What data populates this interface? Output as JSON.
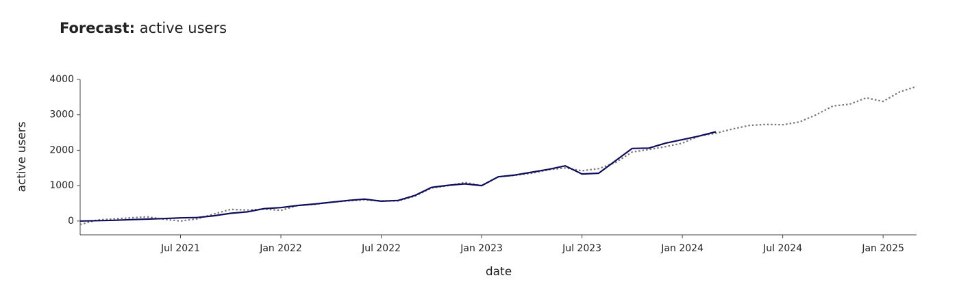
{
  "chart_data": {
    "type": "line",
    "title": [
      "Forecast:",
      "active users"
    ],
    "x_label": "date",
    "y_label": "active users",
    "x": [
      "2021-01",
      "2021-02",
      "2021-03",
      "2021-04",
      "2021-05",
      "2021-06",
      "2021-07",
      "2021-08",
      "2021-09",
      "2021-10",
      "2021-11",
      "2021-12",
      "2022-01",
      "2022-02",
      "2022-03",
      "2022-04",
      "2022-05",
      "2022-06",
      "2022-07",
      "2022-08",
      "2022-09",
      "2022-10",
      "2022-11",
      "2022-12",
      "2023-01",
      "2023-02",
      "2023-03",
      "2023-04",
      "2023-05",
      "2023-06",
      "2023-07",
      "2023-08",
      "2023-09",
      "2023-10",
      "2023-11",
      "2023-12",
      "2024-01",
      "2024-02",
      "2024-03",
      "2024-04",
      "2024-05",
      "2024-06",
      "2024-07",
      "2024-08",
      "2024-09",
      "2024-10",
      "2024-11",
      "2024-12",
      "2025-01",
      "2025-02",
      "2025-03"
    ],
    "series": [
      {
        "color": "#777777",
        "dash": true,
        "values": [
          -100,
          30,
          60,
          90,
          120,
          50,
          0,
          60,
          200,
          330,
          310,
          340,
          300,
          440,
          470,
          530,
          570,
          600,
          570,
          570,
          700,
          930,
          1000,
          1090,
          1000,
          1250,
          1290,
          1350,
          1450,
          1500,
          1420,
          1480,
          1650,
          1950,
          2020,
          2100,
          2200,
          2400,
          2480,
          2600,
          2700,
          2730,
          2720,
          2800,
          3000,
          3250,
          3300,
          3480,
          3380,
          3650,
          3800
        ]
      },
      {
        "color": "#0d0d5e",
        "dash": false,
        "values": [
          0,
          10,
          20,
          40,
          55,
          70,
          90,
          100,
          150,
          220,
          260,
          350,
          380,
          440,
          480,
          530,
          580,
          620,
          560,
          580,
          720,
          950,
          1010,
          1050,
          1000,
          1250,
          1300,
          1380,
          1460,
          1560,
          1330,
          1350,
          1700,
          2050,
          2060,
          2200,
          2300,
          2400,
          2520,
          null,
          null,
          null,
          null,
          null,
          null,
          null,
          null,
          null,
          null,
          null,
          null
        ]
      }
    ],
    "xlim": [
      "2021-01",
      "2025-03"
    ],
    "xticks": [
      {
        "value": "2021-07",
        "label": "Jul 2021"
      },
      {
        "value": "2022-01",
        "label": "Jan 2022"
      },
      {
        "value": "2022-07",
        "label": "Jul 2022"
      },
      {
        "value": "2023-01",
        "label": "Jan 2023"
      },
      {
        "value": "2023-07",
        "label": "Jul 2023"
      },
      {
        "value": "2024-01",
        "label": "Jan 2024"
      },
      {
        "value": "2024-07",
        "label": "Jul 2024"
      },
      {
        "value": "2025-01",
        "label": "Jan 2025"
      }
    ],
    "ylim": [
      -390,
      4000
    ],
    "yticks": [
      0,
      1000,
      2000,
      3000,
      4000
    ],
    "grid": false
  }
}
